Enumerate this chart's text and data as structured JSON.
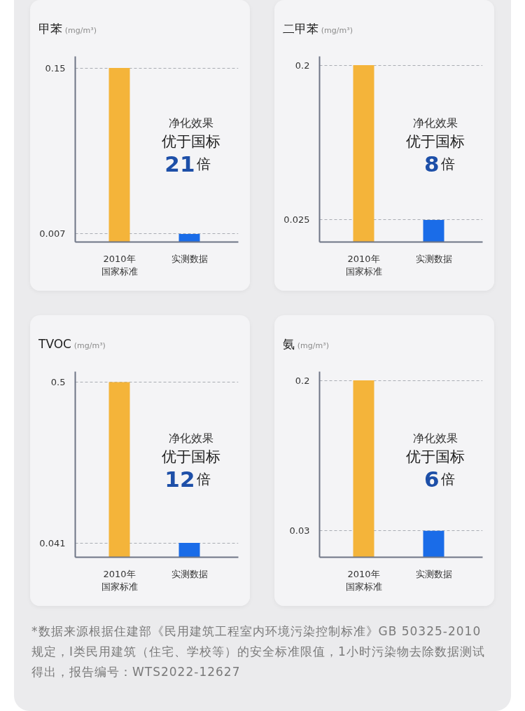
{
  "chart_data": [
    {
      "type": "bar",
      "title": "甲苯",
      "ylabel": "(mg/m³)",
      "categories": [
        "2010年国家标准",
        "实测数据"
      ],
      "values": [
        0.15,
        0.007
      ],
      "colors": [
        "#f4b43a",
        "#1a6ce8"
      ],
      "ylim": [
        0,
        0.16
      ],
      "yticks": [
        0.15,
        0.007
      ],
      "grid": "y",
      "annotations": [
        "净化效果",
        "优于国标",
        "21倍"
      ]
    },
    {
      "type": "bar",
      "title": "二甲苯",
      "ylabel": "(mg/m³)",
      "categories": [
        "2010年国家标准",
        "实测数据"
      ],
      "values": [
        0.2,
        0.025
      ],
      "colors": [
        "#f4b43a",
        "#1a6ce8"
      ],
      "ylim": [
        0,
        0.21
      ],
      "yticks": [
        0.2,
        0.025
      ],
      "grid": "y",
      "annotations": [
        "净化效果",
        "优于国标",
        "8倍"
      ]
    },
    {
      "type": "bar",
      "title": "TVOC",
      "ylabel": "(mg/m³)",
      "categories": [
        "2010年国家标准",
        "实测数据"
      ],
      "values": [
        0.5,
        0.041
      ],
      "colors": [
        "#f4b43a",
        "#1a6ce8"
      ],
      "ylim": [
        0,
        0.53
      ],
      "yticks": [
        0.5,
        0.041
      ],
      "grid": "y",
      "annotations": [
        "净化效果",
        "优于国标",
        "12倍"
      ]
    },
    {
      "type": "bar",
      "title": "氨",
      "ylabel": "(mg/m³)",
      "categories": [
        "2010年国家标准",
        "实测数据"
      ],
      "values": [
        0.2,
        0.03
      ],
      "colors": [
        "#f4b43a",
        "#1a6ce8"
      ],
      "ylim": [
        0,
        0.21
      ],
      "yticks": [
        0.2,
        0.03
      ],
      "grid": "y",
      "annotations": [
        "净化效果",
        "优于国标",
        "6倍"
      ]
    },
    {
      "type": "other",
      "annotations": [
        "*数据来源根据住建部《民用建筑工程室内环境污染控制标准》GB 50325-2010 规定，I类民用建筑（住宅、学校等）的安全标准限值，1小时污染物去除数据测试得出，报告编号：WTS2022-12627"
      ]
    }
  ]
}
